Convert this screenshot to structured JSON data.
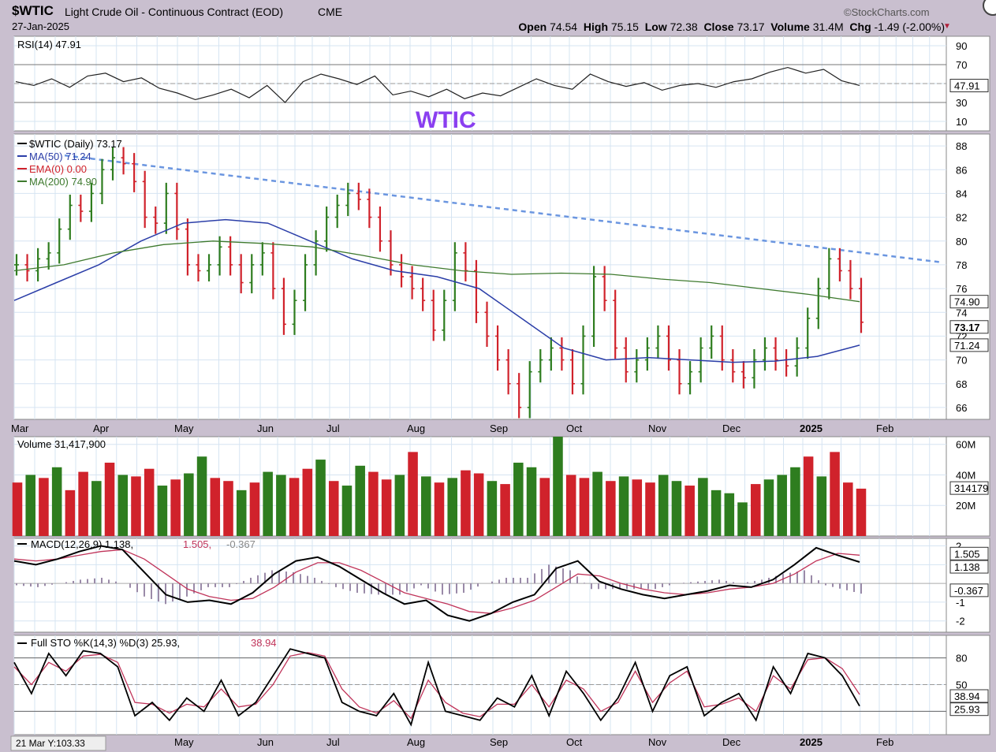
{
  "header": {
    "symbol": "$WTIC",
    "description": "Light Crude Oil - Continuous Contract (EOD)",
    "exchange": "CME",
    "date": "27-Jan-2025",
    "brand": "©StockCharts.com",
    "open_label": "Open",
    "open": "74.54",
    "high_label": "High",
    "high": "75.15",
    "low_label": "Low",
    "low": "72.38",
    "close_label": "Close",
    "close": "73.17",
    "volume_label": "Volume",
    "volume": "31.4M",
    "chg_label": "Chg",
    "chg": "-1.49 (-2.00%)"
  },
  "annotation": "WTIC",
  "status_readout": "21 Mar Y:103.33",
  "colors": {
    "up": "#2e7d1f",
    "down": "#d0222b",
    "ma50": "#2b3ea8",
    "ma200": "#3e7a2e",
    "trendline": "#6b96e0",
    "macd_signal": "#c0345a",
    "annotation": "#8a3ff0"
  },
  "chart_data": [
    {
      "type": "line",
      "title": "RSI(14) 47.91",
      "legend": "RSI(14) 47.91",
      "ylim": [
        0,
        100
      ],
      "yticks": [
        10,
        30,
        50,
        70,
        90
      ],
      "reference_lines": [
        30,
        70
      ],
      "last_value": "47.91",
      "x": [
        0,
        5,
        10,
        15,
        20,
        25,
        30,
        35,
        40,
        45,
        50,
        55,
        60,
        65,
        70,
        75,
        80,
        85,
        90,
        95,
        100,
        105,
        110,
        115,
        120,
        125,
        130,
        135,
        140,
        145,
        150,
        155,
        160,
        165,
        170,
        175,
        180,
        185,
        190,
        195,
        200,
        205,
        210,
        215,
        220,
        225,
        230,
        235
      ],
      "values": [
        52,
        48,
        55,
        46,
        58,
        61,
        52,
        56,
        45,
        40,
        33,
        38,
        44,
        35,
        48,
        30,
        52,
        60,
        55,
        49,
        58,
        38,
        42,
        36,
        44,
        34,
        40,
        37,
        46,
        55,
        48,
        44,
        60,
        52,
        47,
        51,
        43,
        48,
        50,
        46,
        52,
        55,
        62,
        67,
        61,
        65,
        53,
        48
      ]
    },
    {
      "type": "line",
      "title": "$WTIC (Daily) 73.17",
      "ylim": [
        65,
        89
      ],
      "yticks": [
        66,
        68,
        70,
        72,
        74,
        76,
        78,
        80,
        82,
        84,
        86,
        88
      ],
      "x_labels": [
        "Mar",
        "Apr",
        "May",
        "Jun",
        "Jul",
        "Aug",
        "Sep",
        "Oct",
        "Nov",
        "Dec",
        "2025",
        "Feb"
      ],
      "legend": [
        "$WTIC (Daily) 73.17",
        "MA(50) 71.24",
        "EMA(0) 0.00",
        "MA(200) 74.90"
      ],
      "price_flags": [
        "74.90",
        "73.17",
        "71.24"
      ],
      "series": [
        {
          "name": "$WTIC (Daily) 73.17",
          "values": [
            78,
            77.5,
            78.5,
            79,
            81,
            83,
            82.5,
            84,
            86,
            87,
            86.5,
            85,
            82,
            81.5,
            84,
            81,
            78,
            77.5,
            78,
            79.5,
            78,
            76.5,
            78,
            79,
            76,
            73,
            75,
            78,
            80,
            82,
            83,
            84,
            83.5,
            82,
            80,
            78,
            77,
            76,
            75,
            72.5,
            75,
            79,
            77.5,
            74,
            72,
            70,
            68,
            66,
            69,
            70,
            71,
            70,
            68,
            72,
            77,
            75,
            71,
            69,
            70,
            71,
            72,
            70,
            68,
            69,
            71,
            72,
            70,
            69,
            68.5,
            70,
            71,
            70,
            69.5,
            71,
            73.5,
            76,
            78.5,
            77.5,
            76,
            73.17
          ]
        },
        {
          "name": "MA(50) 71.24",
          "values": [
            75,
            76.5,
            78,
            80,
            81.5,
            81.8,
            81.5,
            80,
            78.5,
            77.5,
            77,
            76,
            73.5,
            71,
            70,
            70.2,
            70,
            69.8,
            69.9,
            70.3,
            71.24
          ]
        },
        {
          "name": "EMA(0) 0.00",
          "values": []
        },
        {
          "name": "MA(200) 74.90",
          "values": [
            77.5,
            78,
            79,
            79.7,
            80,
            79.8,
            79.5,
            78.8,
            78,
            77.5,
            77.2,
            77.3,
            77.2,
            76.8,
            76.5,
            76,
            75.5,
            74.9
          ]
        }
      ],
      "trendline": {
        "from": {
          "x": "Apr",
          "y": 87.2
        },
        "to": {
          "x": "Feb",
          "y": 78.2
        }
      }
    },
    {
      "type": "bar",
      "title": "Volume 31,417,900",
      "ylim": [
        0,
        65
      ],
      "yticks": [
        "20M",
        "40M",
        "60M"
      ],
      "flag": "314179",
      "values": [
        35,
        40,
        38,
        45,
        30,
        42,
        36,
        48,
        40,
        39,
        44,
        33,
        37,
        41,
        52,
        38,
        36,
        30,
        35,
        42,
        40,
        38,
        44,
        50,
        36,
        33,
        46,
        42,
        37,
        40,
        55,
        39,
        35,
        38,
        43,
        41,
        36,
        34,
        48,
        45,
        38,
        65,
        40,
        38,
        42,
        36,
        39,
        37,
        35,
        40,
        36,
        33,
        38,
        30,
        28,
        22,
        34,
        37,
        40,
        45,
        52,
        39,
        55,
        35,
        31
      ],
      "up": [
        0,
        1,
        0,
        1,
        0,
        0,
        1,
        0,
        1,
        0,
        0,
        1,
        0,
        1,
        1,
        0,
        0,
        1,
        0,
        1,
        1,
        0,
        0,
        1,
        0,
        1,
        1,
        0,
        0,
        1,
        0,
        1,
        0,
        1,
        0,
        0,
        1,
        0,
        1,
        1,
        0,
        1,
        0,
        0,
        1,
        0,
        1,
        0,
        0,
        1,
        1,
        0,
        1,
        1,
        1,
        1,
        0,
        1,
        1,
        1,
        0,
        1,
        0,
        0,
        0
      ]
    },
    {
      "type": "line",
      "title": "MACD(12,26,9) 1.138, 1.505, -0.367",
      "legend": [
        "MACD(12,26,9) 1.138",
        "1.505",
        "-0.367"
      ],
      "ylim": [
        -2.6,
        2.4
      ],
      "yticks": [
        -2,
        -1,
        1,
        2
      ],
      "flags": [
        "1.505",
        "1.138",
        "-0.367"
      ],
      "series": [
        {
          "name": "MACD(12,26,9) 1.138",
          "values": [
            1.2,
            1.0,
            1.3,
            1.7,
            2.0,
            1.8,
            0.6,
            -0.6,
            -1.0,
            -0.9,
            -1.1,
            -0.5,
            0.5,
            1.2,
            1.4,
            0.9,
            0.2,
            -0.5,
            -1.1,
            -0.9,
            -1.7,
            -2.0,
            -1.6,
            -1.0,
            -0.6,
            0.8,
            1.2,
            0.1,
            -0.3,
            -0.6,
            -0.8,
            -0.6,
            -0.4,
            -0.1,
            -0.2,
            0.2,
            1.0,
            1.9,
            1.5,
            1.138
          ]
        },
        {
          "name": "1.505",
          "values": [
            1.3,
            1.2,
            1.3,
            1.5,
            1.7,
            1.8,
            1.3,
            0.5,
            -0.3,
            -0.7,
            -0.9,
            -0.8,
            -0.2,
            0.6,
            1.1,
            1.1,
            0.7,
            0.1,
            -0.5,
            -0.8,
            -1.1,
            -1.5,
            -1.6,
            -1.3,
            -0.9,
            -0.2,
            0.5,
            0.4,
            0.0,
            -0.3,
            -0.5,
            -0.6,
            -0.5,
            -0.3,
            -0.2,
            0.0,
            0.5,
            1.2,
            1.6,
            1.505
          ]
        },
        {
          "name": "-0.367",
          "values": [
            -0.1,
            -0.2,
            0.0,
            0.2,
            0.3,
            0.0,
            -0.7,
            -1.1,
            -0.7,
            -0.2,
            -0.2,
            0.3,
            0.7,
            0.6,
            0.3,
            -0.2,
            -0.5,
            -0.6,
            -0.6,
            -0.1,
            -0.6,
            -0.5,
            0.0,
            0.3,
            0.3,
            1.0,
            0.7,
            -0.3,
            -0.3,
            -0.3,
            -0.3,
            0.0,
            0.1,
            0.2,
            0.0,
            0.2,
            0.5,
            0.7,
            -0.1,
            -0.367
          ]
        }
      ]
    },
    {
      "type": "line",
      "title": "Full STO %K(14,3) %D(3) 25.93, 38.94",
      "legend": [
        "Full STO %K(14,3) %D(3) 25.93",
        "38.94"
      ],
      "ylim": [
        0,
        100
      ],
      "yticks": [
        20,
        50,
        80
      ],
      "reference_lines": [
        20,
        80
      ],
      "flags": [
        "38.94",
        "25.93"
      ],
      "x_labels": [
        "May",
        "Jun",
        "Jul",
        "Aug",
        "Sep",
        "Oct",
        "Nov",
        "Dec",
        "2025",
        "Feb"
      ],
      "series": [
        {
          "name": "Full STO %K(14,3) %D(3) 25.93",
          "values": [
            75,
            40,
            85,
            60,
            88,
            85,
            70,
            15,
            30,
            10,
            35,
            20,
            55,
            15,
            30,
            60,
            90,
            85,
            80,
            30,
            20,
            15,
            40,
            5,
            75,
            20,
            15,
            10,
            35,
            25,
            60,
            15,
            65,
            40,
            10,
            35,
            75,
            20,
            60,
            70,
            15,
            30,
            40,
            10,
            70,
            40,
            85,
            80,
            60,
            25.93
          ]
        },
        {
          "name": "38.94",
          "values": [
            70,
            50,
            75,
            65,
            82,
            84,
            75,
            30,
            28,
            18,
            28,
            25,
            45,
            25,
            28,
            50,
            82,
            86,
            82,
            45,
            25,
            18,
            32,
            12,
            55,
            30,
            18,
            14,
            28,
            28,
            50,
            25,
            55,
            45,
            20,
            30,
            65,
            30,
            52,
            65,
            25,
            28,
            35,
            20,
            60,
            45,
            78,
            80,
            68,
            38.94
          ]
        }
      ]
    }
  ]
}
